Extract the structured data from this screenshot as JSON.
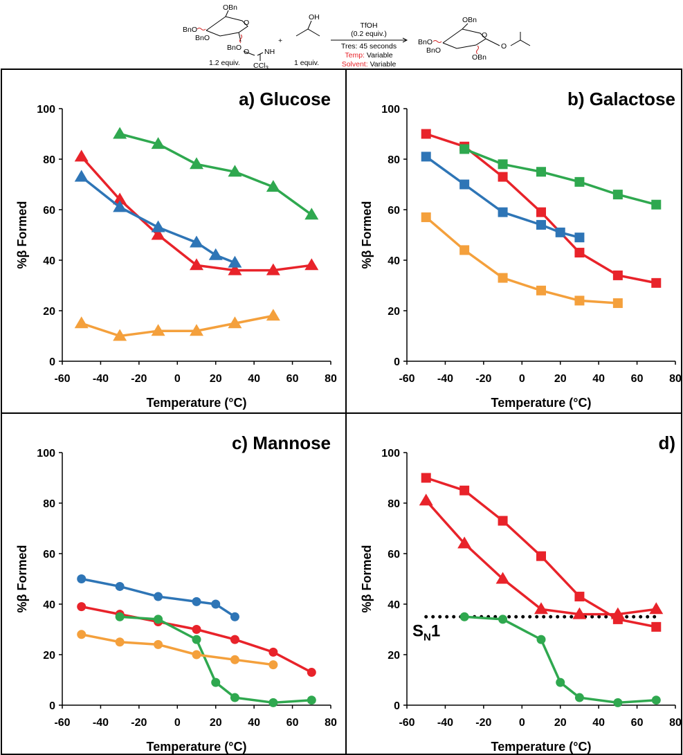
{
  "scheme": {
    "donor": {
      "labels": [
        "OBn",
        "BnO",
        "BnO",
        "O",
        "BnO",
        "O",
        "NH",
        "CCl",
        "3"
      ],
      "amount": "1.2 equiv."
    },
    "plus": "+",
    "acceptor": {
      "label": "OH",
      "amount": "1 equiv."
    },
    "conditions": {
      "reagent": "TfOH",
      "reagent_amount": "(0.2 equiv.)",
      "residence": "Tres: 45 seconds",
      "temp_label": "Temp:",
      "temp_value": "Variable",
      "solvent_label": "Solvent:",
      "solvent_value": "Variable"
    },
    "product": {
      "labels": [
        "OBn",
        "O",
        "BnO",
        "BnO",
        "OBn",
        "O"
      ]
    }
  },
  "chart_data": [
    {
      "type": "line",
      "title": "a) Glucose",
      "xlabel": "Temperature (°C)",
      "ylabel": "%β Formed",
      "xlim": [
        -60,
        80
      ],
      "xticks": [
        -60,
        -40,
        -20,
        0,
        20,
        40,
        60,
        80
      ],
      "ylim": [
        0,
        100
      ],
      "yticks": [
        0,
        20,
        40,
        60,
        80,
        100
      ],
      "series": [
        {
          "color": "#2fa84f",
          "marker": "triangle",
          "x": [
            -30,
            -10,
            10,
            30,
            50,
            70
          ],
          "values": [
            90,
            86,
            78,
            75,
            69,
            58
          ]
        },
        {
          "color": "#e8232a",
          "marker": "triangle",
          "x": [
            -50,
            -30,
            -10,
            10,
            30,
            50,
            70
          ],
          "values": [
            81,
            64,
            50,
            38,
            36,
            36,
            38
          ]
        },
        {
          "color": "#2e75b6",
          "marker": "triangle",
          "x": [
            -50,
            -30,
            -10,
            10,
            20,
            30
          ],
          "values": [
            73,
            61,
            53,
            47,
            42,
            39
          ]
        },
        {
          "color": "#f4a03c",
          "marker": "triangle",
          "x": [
            -50,
            -30,
            -10,
            10,
            30,
            50
          ],
          "values": [
            15,
            10,
            12,
            12,
            15,
            18
          ]
        }
      ]
    },
    {
      "type": "line",
      "title": "b) Galactose",
      "xlabel": "Temperature (°C)",
      "ylabel": "%β Formed",
      "xlim": [
        -60,
        80
      ],
      "xticks": [
        -60,
        -40,
        -20,
        0,
        20,
        40,
        60,
        80
      ],
      "ylim": [
        0,
        100
      ],
      "yticks": [
        0,
        20,
        40,
        60,
        80,
        100
      ],
      "series": [
        {
          "color": "#e8232a",
          "marker": "square",
          "x": [
            -50,
            -30,
            -10,
            10,
            30,
            50,
            70
          ],
          "values": [
            90,
            85,
            73,
            59,
            43,
            34,
            31
          ]
        },
        {
          "color": "#2fa84f",
          "marker": "square",
          "x": [
            -30,
            -10,
            10,
            30,
            50,
            70
          ],
          "values": [
            84,
            78,
            75,
            71,
            66,
            62
          ]
        },
        {
          "color": "#2e75b6",
          "marker": "square",
          "x": [
            -50,
            -30,
            -10,
            10,
            20,
            30
          ],
          "values": [
            81,
            70,
            59,
            54,
            51,
            49
          ]
        },
        {
          "color": "#f4a03c",
          "marker": "square",
          "x": [
            -50,
            -30,
            -10,
            10,
            30,
            50
          ],
          "values": [
            57,
            44,
            33,
            28,
            24,
            23
          ]
        }
      ]
    },
    {
      "type": "line",
      "title": "c) Mannose",
      "xlabel": "Temperature (°C)",
      "ylabel": "%β Formed",
      "xlim": [
        -60,
        80
      ],
      "xticks": [
        -60,
        -40,
        -20,
        0,
        20,
        40,
        60,
        80
      ],
      "ylim": [
        0,
        100
      ],
      "yticks": [
        0,
        20,
        40,
        60,
        80,
        100
      ],
      "series": [
        {
          "color": "#2e75b6",
          "marker": "circle",
          "x": [
            -50,
            -30,
            -10,
            10,
            20,
            30
          ],
          "values": [
            50,
            47,
            43,
            41,
            40,
            35
          ]
        },
        {
          "color": "#e8232a",
          "marker": "circle",
          "x": [
            -50,
            -30,
            -10,
            10,
            30,
            50,
            70
          ],
          "values": [
            39,
            36,
            33,
            30,
            26,
            21,
            13
          ]
        },
        {
          "color": "#2fa84f",
          "marker": "circle",
          "x": [
            -30,
            -10,
            10,
            20,
            30,
            50,
            70
          ],
          "values": [
            35,
            34,
            26,
            9,
            3,
            1,
            2
          ]
        },
        {
          "color": "#f4a03c",
          "marker": "circle",
          "x": [
            -50,
            -30,
            -10,
            10,
            30,
            50
          ],
          "values": [
            28,
            25,
            24,
            20,
            18,
            16
          ]
        }
      ]
    },
    {
      "type": "line",
      "title": "d)",
      "xlabel": "Temperature (°C)",
      "ylabel": "%β Formed",
      "xlim": [
        -60,
        80
      ],
      "xticks": [
        -60,
        -40,
        -20,
        0,
        20,
        40,
        60,
        80
      ],
      "ylim": [
        0,
        100
      ],
      "yticks": [
        0,
        20,
        40,
        60,
        80,
        100
      ],
      "series": [
        {
          "color": "#e8232a",
          "marker": "square",
          "x": [
            -50,
            -30,
            -10,
            10,
            30,
            50,
            70
          ],
          "values": [
            90,
            85,
            73,
            59,
            43,
            34,
            31
          ]
        },
        {
          "color": "#e8232a",
          "marker": "triangle",
          "x": [
            -50,
            -30,
            -10,
            10,
            30,
            50,
            70
          ],
          "values": [
            81,
            64,
            50,
            38,
            36,
            36,
            38
          ]
        },
        {
          "color": "#2fa84f",
          "marker": "circle",
          "x": [
            -30,
            -10,
            10,
            20,
            30,
            50,
            70
          ],
          "values": [
            35,
            34,
            26,
            9,
            3,
            1,
            2
          ]
        }
      ],
      "reference_line": {
        "y": 35,
        "x": [
          -50,
          70
        ],
        "color": "#000000"
      },
      "annotation": {
        "text": "S",
        "subscript": "N",
        "suffix": "1"
      }
    }
  ]
}
